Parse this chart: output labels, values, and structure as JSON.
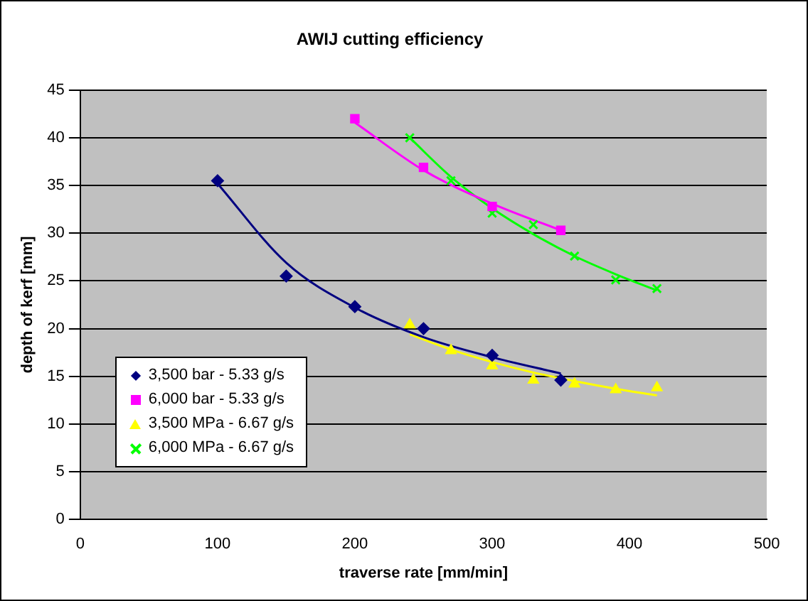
{
  "chart_data": {
    "type": "scatter",
    "title": "AWIJ cutting efficiency",
    "xlabel": "traverse rate [mm/min]",
    "ylabel": "depth of kerf [mm]",
    "xlim": [
      0,
      500
    ],
    "xticks": [
      0,
      100,
      200,
      300,
      400,
      500
    ],
    "ylim": [
      0,
      45
    ],
    "yticks": [
      0,
      5,
      10,
      15,
      20,
      25,
      30,
      35,
      40,
      45
    ],
    "grid": "y",
    "legend": "bottom left",
    "series": [
      {
        "name": "3,500 bar - 5.33 g/s",
        "color": "#000080",
        "marker": "diamond",
        "x": [
          100,
          150,
          200,
          250,
          300,
          350
        ],
        "values": [
          35.5,
          25.5,
          22.3,
          20,
          17.2,
          14.6
        ]
      },
      {
        "name": "6,000 bar - 5.33 g/s",
        "color": "#ff00ff",
        "marker": "square",
        "x": [
          200,
          250,
          300,
          350
        ],
        "values": [
          42,
          36.9,
          32.8,
          30.3
        ]
      },
      {
        "name": "3,500 MPa - 6.67 g/s",
        "color": "#ffff00",
        "marker": "triangle",
        "x": [
          240,
          270,
          300,
          330,
          360,
          390,
          420
        ],
        "values": [
          20.4,
          17.7,
          16.1,
          14.6,
          14.2,
          13.6,
          13.8
        ]
      },
      {
        "name": "6,000 MPa - 6.67 g/s",
        "color": "#00ff00",
        "marker": "cross",
        "x": [
          240,
          270,
          300,
          330,
          360,
          390,
          420
        ],
        "values": [
          40,
          35.5,
          32.1,
          30.9,
          27.6,
          25.1,
          24.2
        ]
      },
      {
        "type": "line",
        "color": "#000080",
        "marker": "none",
        "x": [
          100,
          150,
          200,
          250,
          300,
          350
        ],
        "values": [
          35.2,
          26.9,
          22.2,
          19.1,
          17,
          15.3
        ]
      },
      {
        "type": "line",
        "color": "#ff00ff",
        "marker": "none",
        "x": [
          200,
          250,
          300,
          350
        ],
        "values": [
          41.6,
          36.6,
          33.1,
          30.3
        ]
      },
      {
        "type": "line",
        "color": "#ffff00",
        "marker": "none",
        "x": [
          240,
          270,
          300,
          330,
          360,
          390,
          420
        ],
        "values": [
          19.4,
          17.8,
          16.5,
          15.4,
          14.5,
          13.7,
          13
        ]
      },
      {
        "type": "line",
        "color": "#00ff00",
        "marker": "none",
        "x": [
          240,
          270,
          300,
          330,
          360,
          390,
          420
        ],
        "values": [
          40,
          35.9,
          32.6,
          29.9,
          27.6,
          25.7,
          24
        ]
      }
    ]
  }
}
